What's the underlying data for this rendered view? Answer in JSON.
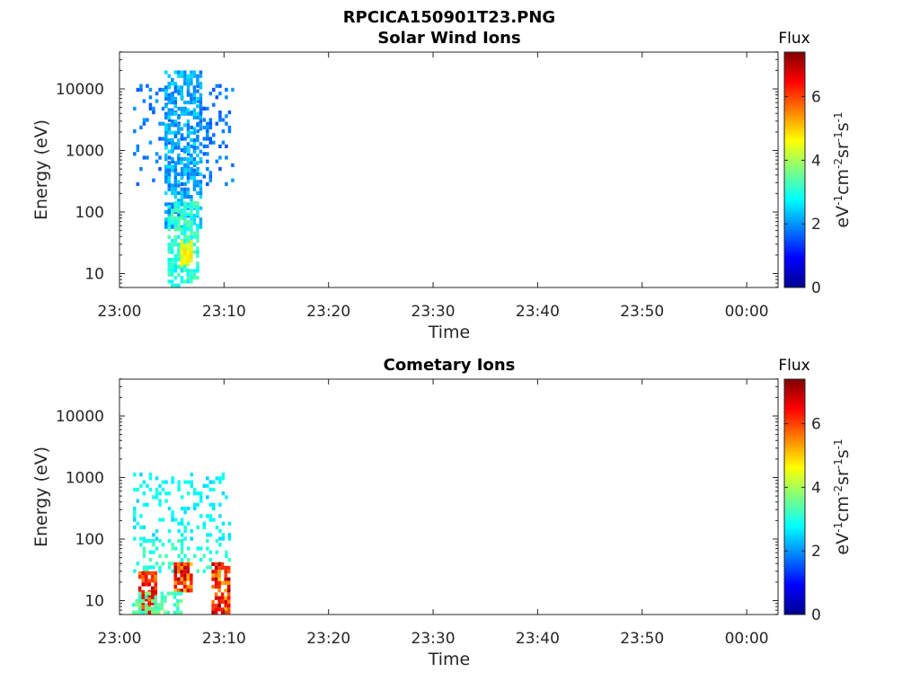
{
  "figure_title": "RPCICA150901T23.PNG",
  "chart_data": [
    {
      "type": "heatmap",
      "title": "Solar Wind Ions",
      "xlabel": "Time",
      "ylabel": "Energy (eV)",
      "x_ticks": [
        "23:00",
        "23:10",
        "23:20",
        "23:30",
        "23:40",
        "23:50",
        "00:00"
      ],
      "y_ticks": [
        "10",
        "100",
        "1000",
        "10000"
      ],
      "y_scale": "log",
      "xlim_minutes": [
        0,
        63
      ],
      "ylim": [
        6,
        45000
      ],
      "colorbar": {
        "title": "Flux",
        "label": "eV-1cm-2sr-1s-1",
        "ticks": [
          "0",
          "2",
          "4",
          "6"
        ],
        "range": [
          0,
          7.4
        ],
        "colormap": "jet"
      },
      "clusters": [
        {
          "t_start": 1.3,
          "t_end": 10.9,
          "e_min": 300,
          "e_max": 12000,
          "density": 0.2,
          "flux_min": 1.5,
          "flux_max": 2.1
        },
        {
          "t_start": 4.3,
          "t_end": 7.7,
          "e_min": 60,
          "e_max": 20000,
          "density": 0.6,
          "flux_min": 1.7,
          "flux_max": 2.6
        },
        {
          "t_start": 4.6,
          "t_end": 7.6,
          "e_min": 10,
          "e_max": 150,
          "density": 0.65,
          "flux_min": 2.7,
          "flux_max": 3.5
        },
        {
          "t_start": 5.8,
          "t_end": 7.0,
          "e_min": 15,
          "e_max": 35,
          "density": 0.95,
          "flux_min": 4.2,
          "flux_max": 4.9
        },
        {
          "t_start": 4.6,
          "t_end": 7.6,
          "e_min": 6,
          "e_max": 14,
          "density": 0.45,
          "flux_min": 2.6,
          "flux_max": 3.4
        }
      ]
    },
    {
      "type": "heatmap",
      "title": "Cometary Ions",
      "xlabel": "Time",
      "ylabel": "Energy (eV)",
      "x_ticks": [
        "23:00",
        "23:10",
        "23:20",
        "23:30",
        "23:40",
        "23:50",
        "00:00"
      ],
      "y_ticks": [
        "10",
        "100",
        "1000",
        "10000"
      ],
      "y_scale": "log",
      "xlim_minutes": [
        0,
        63
      ],
      "ylim": [
        6,
        45000
      ],
      "colorbar": {
        "title": "Flux",
        "label": "eV-1cm-2sr-1s-1",
        "ticks": [
          "0",
          "2",
          "4",
          "6"
        ],
        "range": [
          0,
          7.4
        ],
        "colormap": "jet"
      },
      "clusters": [
        {
          "t_start": 1.3,
          "t_end": 10.6,
          "e_min": 100,
          "e_max": 1200,
          "density": 0.25,
          "flux_min": 2.4,
          "flux_max": 3.0
        },
        {
          "t_start": 1.3,
          "t_end": 10.6,
          "e_min": 30,
          "e_max": 100,
          "density": 0.25,
          "flux_min": 2.8,
          "flux_max": 3.4
        },
        {
          "t_start": 1.8,
          "t_end": 3.4,
          "e_min": 6,
          "e_max": 30,
          "density": 0.9,
          "flux_min": 5.4,
          "flux_max": 7.0
        },
        {
          "t_start": 5.2,
          "t_end": 7.0,
          "e_min": 15,
          "e_max": 42,
          "density": 0.9,
          "flux_min": 5.0,
          "flux_max": 7.2
        },
        {
          "t_start": 8.8,
          "t_end": 10.5,
          "e_min": 6,
          "e_max": 42,
          "density": 0.8,
          "flux_min": 5.0,
          "flux_max": 7.2
        },
        {
          "t_start": 1.2,
          "t_end": 6.0,
          "e_min": 6,
          "e_max": 14,
          "density": 0.4,
          "flux_min": 3.0,
          "flux_max": 3.8
        }
      ]
    }
  ]
}
